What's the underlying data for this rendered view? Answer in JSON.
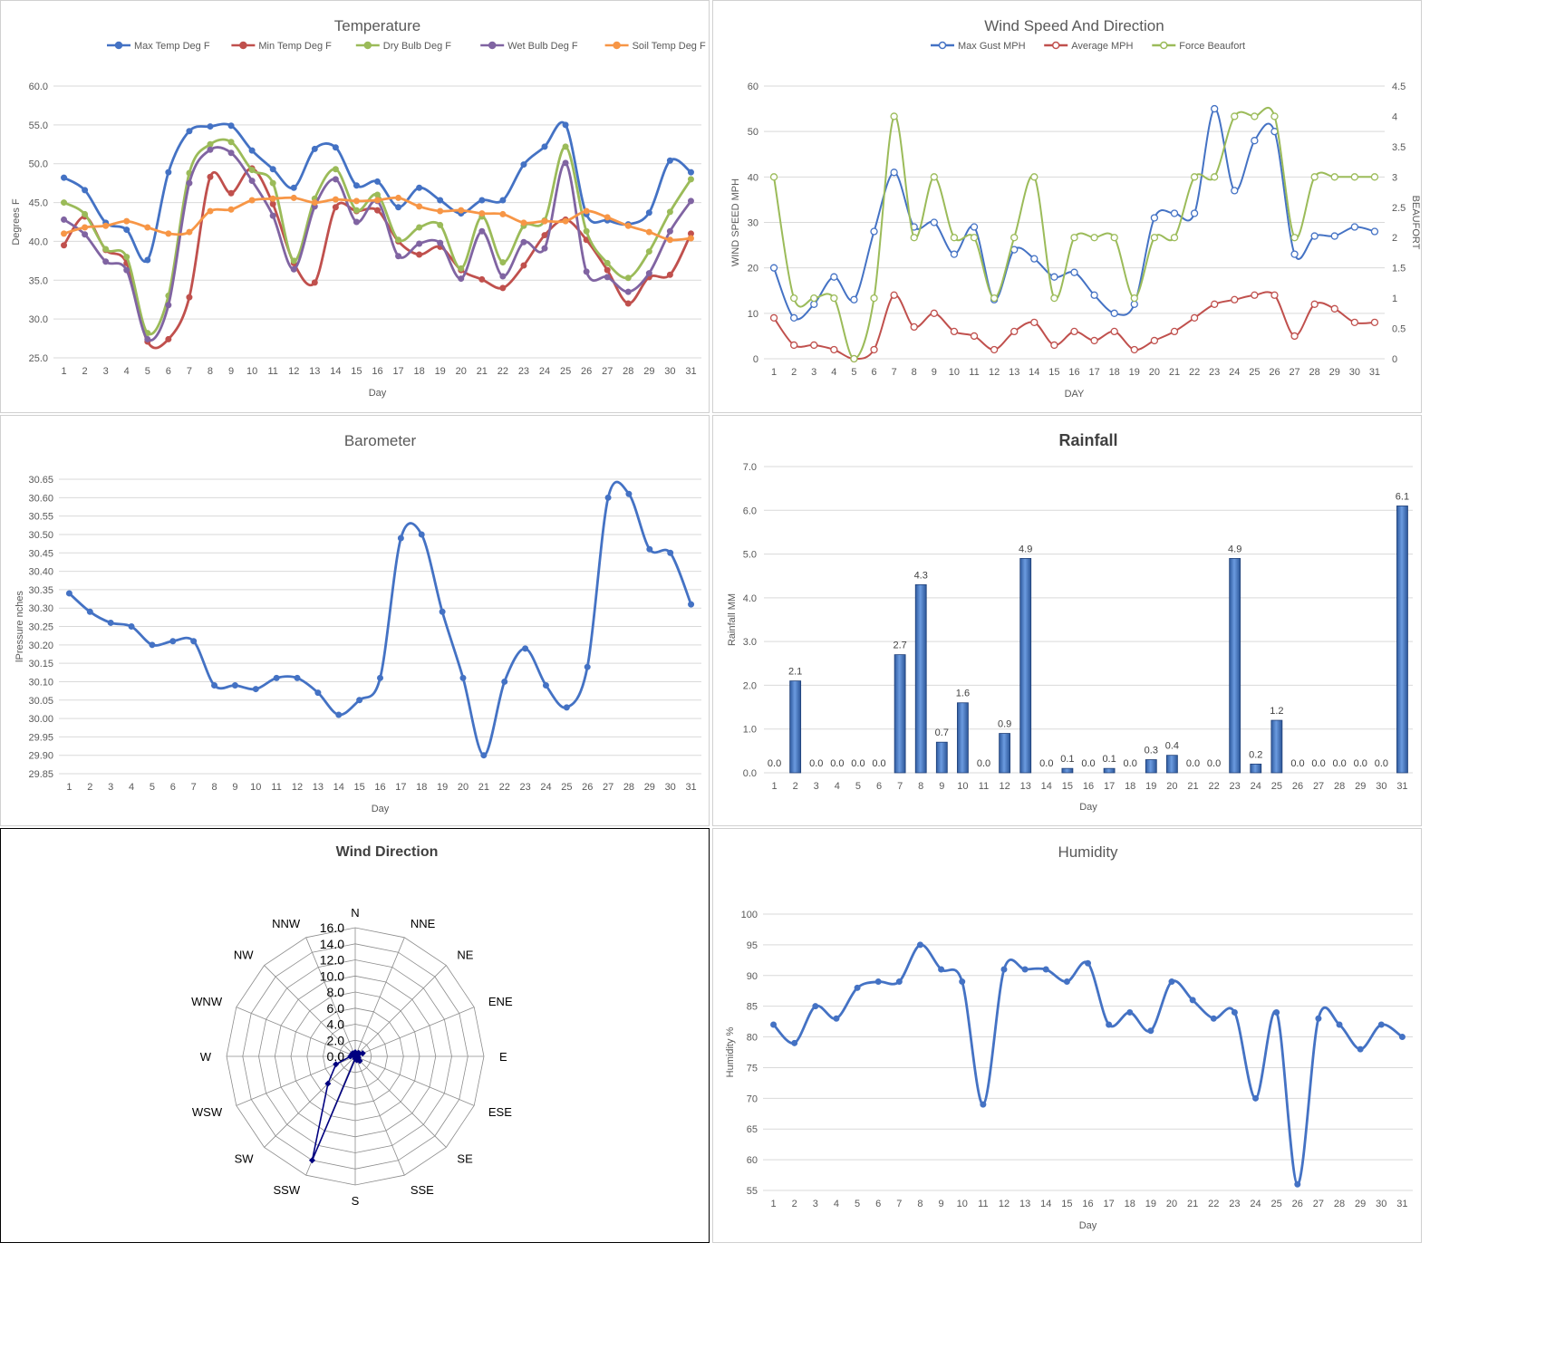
{
  "chart_data": [
    {
      "id": "temperature",
      "type": "line",
      "title": "Temperature",
      "xlabel": "Day",
      "ylabel": "Degrees F",
      "ylim": [
        25,
        60
      ],
      "yticks": [
        "60.0",
        "55.0",
        "50.0",
        "45.0",
        "40.0",
        "35.0",
        "30.0",
        "25.0"
      ],
      "categories": [
        "1",
        "2",
        "3",
        "4",
        "5",
        "6",
        "7",
        "8",
        "9",
        "10",
        "11",
        "12",
        "13",
        "14",
        "15",
        "16",
        "17",
        "18",
        "19",
        "20",
        "21",
        "22",
        "23",
        "24",
        "25",
        "26",
        "27",
        "28",
        "29",
        "30",
        "31"
      ],
      "grid": true,
      "legend": "top",
      "series": [
        {
          "name": "Max Temp Deg F",
          "color": "#4472c4",
          "values": [
            48.2,
            46.6,
            42.4,
            41.5,
            37.6,
            48.9,
            54.2,
            54.8,
            54.9,
            51.7,
            49.3,
            46.9,
            51.9,
            52.1,
            47.2,
            47.7,
            44.4,
            46.9,
            45.3,
            43.6,
            45.3,
            45.3,
            49.9,
            52.2,
            55.0,
            43.5,
            42.7,
            42.2,
            43.7,
            50.4,
            48.9
          ]
        },
        {
          "name": "Min Temp Deg F",
          "color": "#c0504d",
          "values": [
            39.5,
            43.2,
            38.9,
            37.2,
            27.1,
            27.4,
            32.8,
            48.3,
            46.2,
            49.4,
            44.8,
            37.2,
            34.7,
            44.4,
            43.9,
            44.0,
            40.0,
            38.3,
            39.3,
            36.3,
            35.1,
            34.0,
            36.9,
            40.8,
            42.8,
            40.2,
            36.3,
            32.0,
            35.4,
            35.7,
            41.0
          ]
        },
        {
          "name": "Dry Bulb Deg F",
          "color": "#9bbb59",
          "values": [
            45.0,
            43.5,
            39.0,
            38.0,
            28.2,
            33.0,
            48.8,
            52.5,
            52.8,
            49.2,
            47.5,
            37.5,
            45.5,
            49.3,
            44.0,
            46.0,
            40.2,
            41.8,
            42.1,
            36.5,
            43.2,
            37.3,
            42.0,
            42.7,
            52.2,
            41.3,
            37.2,
            35.3,
            38.7,
            43.8,
            48.0
          ]
        },
        {
          "name": "Wet Bulb Deg F",
          "color": "#8064a2",
          "values": [
            42.8,
            40.9,
            37.4,
            36.3,
            27.4,
            31.8,
            47.5,
            51.8,
            51.4,
            47.8,
            43.3,
            36.4,
            44.5,
            48.0,
            42.5,
            45.2,
            38.1,
            39.7,
            39.8,
            35.2,
            41.3,
            35.5,
            39.9,
            39.1,
            50.1,
            36.1,
            35.4,
            33.5,
            35.9,
            41.3,
            45.2
          ]
        },
        {
          "name": "Soil Temp Deg F",
          "color": "#f79646",
          "values": [
            41.0,
            41.8,
            42.0,
            42.6,
            41.8,
            41.0,
            41.2,
            43.9,
            44.1,
            45.3,
            45.5,
            45.6,
            45.0,
            45.4,
            45.2,
            45.3,
            45.6,
            44.5,
            43.9,
            44.0,
            43.6,
            43.5,
            42.4,
            42.6,
            42.6,
            43.9,
            43.1,
            42.0,
            41.2,
            40.2,
            40.4
          ]
        }
      ]
    },
    {
      "id": "wind",
      "type": "line",
      "title": "Wind Speed And Direction",
      "xlabel": "DAY",
      "ylabel": "WIND SPEED MPH",
      "y2label": "BEAUFORT",
      "ylim": [
        0,
        60
      ],
      "y2lim": [
        0,
        4.5
      ],
      "yticks": [
        "60",
        "50",
        "40",
        "30",
        "20",
        "10",
        "0"
      ],
      "y2ticks": [
        "4.5",
        "4",
        "3.5",
        "3",
        "2.5",
        "2",
        "1.5",
        "1",
        "0.5",
        "0"
      ],
      "categories": [
        "1",
        "2",
        "3",
        "4",
        "5",
        "6",
        "7",
        "8",
        "9",
        "10",
        "11",
        "12",
        "13",
        "14",
        "15",
        "16",
        "17",
        "18",
        "19",
        "20",
        "21",
        "22",
        "23",
        "24",
        "25",
        "26",
        "27",
        "28",
        "29",
        "30",
        "31"
      ],
      "grid": true,
      "legend": "top",
      "series": [
        {
          "name": "Max Gust MPH",
          "color": "#4472c4",
          "axis": "left",
          "values": [
            20,
            9,
            12,
            18,
            13,
            28,
            41,
            29,
            30,
            23,
            29,
            13,
            24,
            22,
            18,
            19,
            14,
            10,
            12,
            31,
            32,
            32,
            55,
            37,
            48,
            50,
            23,
            27,
            27,
            29,
            28
          ]
        },
        {
          "name": "Average MPH",
          "color": "#c0504d",
          "axis": "left",
          "values": [
            9,
            3,
            3,
            2,
            0,
            2,
            14,
            7,
            10,
            6,
            5,
            2,
            6,
            8,
            3,
            6,
            4,
            6,
            2,
            4,
            6,
            9,
            12,
            13,
            14,
            14,
            5,
            12,
            11,
            8,
            8
          ]
        },
        {
          "name": "Force Beaufort",
          "color": "#9bbb59",
          "axis": "right",
          "values": [
            3,
            1,
            1,
            1,
            0,
            1,
            4,
            2,
            3,
            2,
            2,
            1,
            2,
            3,
            1,
            2,
            2,
            2,
            1,
            2,
            2,
            3,
            3,
            4,
            4,
            4,
            2,
            3,
            3,
            3,
            3
          ]
        }
      ]
    },
    {
      "id": "barometer",
      "type": "line",
      "title": "Barometer",
      "xlabel": "Day",
      "ylabel": "lPressure nches",
      "ylim": [
        29.85,
        30.65
      ],
      "yticks": [
        "30.65",
        "30.60",
        "30.55",
        "30.50",
        "30.45",
        "30.40",
        "30.35",
        "30.30",
        "30.25",
        "30.20",
        "30.15",
        "30.10",
        "30.05",
        "30.00",
        "29.95",
        "29.90",
        "29.85"
      ],
      "categories": [
        "1",
        "2",
        "3",
        "4",
        "5",
        "6",
        "7",
        "8",
        "9",
        "10",
        "11",
        "12",
        "13",
        "14",
        "15",
        "16",
        "17",
        "18",
        "19",
        "20",
        "21",
        "22",
        "23",
        "24",
        "25",
        "26",
        "27",
        "28",
        "29",
        "30",
        "31"
      ],
      "grid": true,
      "series": [
        {
          "name": "",
          "color": "#4472c4",
          "values": [
            30.34,
            30.29,
            30.26,
            30.25,
            30.2,
            30.21,
            30.21,
            30.09,
            30.09,
            30.08,
            30.11,
            30.11,
            30.07,
            30.01,
            30.05,
            30.11,
            30.49,
            30.5,
            30.29,
            30.11,
            29.9,
            30.1,
            30.19,
            30.09,
            30.03,
            30.14,
            30.6,
            30.61,
            30.46,
            30.45,
            30.31
          ]
        }
      ]
    },
    {
      "id": "rainfall",
      "type": "bar",
      "title": "Rainfall",
      "xlabel": "Day",
      "ylabel": "Rainfall MM",
      "ylim": [
        0,
        7
      ],
      "yticks": [
        "7.0",
        "6.0",
        "5.0",
        "4.0",
        "3.0",
        "2.0",
        "1.0",
        "0.0"
      ],
      "categories": [
        "1",
        "2",
        "3",
        "4",
        "5",
        "6",
        "7",
        "8",
        "9",
        "10",
        "11",
        "12",
        "13",
        "14",
        "15",
        "16",
        "17",
        "18",
        "19",
        "20",
        "21",
        "22",
        "23",
        "24",
        "25",
        "26",
        "27",
        "28",
        "29",
        "30",
        "31"
      ],
      "grid": true,
      "series": [
        {
          "name": "",
          "color": "#4472c4",
          "values": [
            0.0,
            2.1,
            0.0,
            0.0,
            0.0,
            0.0,
            2.7,
            4.3,
            0.7,
            1.6,
            0.0,
            0.9,
            4.9,
            0.0,
            0.1,
            0.0,
            0.1,
            0.0,
            0.3,
            0.4,
            0.0,
            0.0,
            4.9,
            0.2,
            1.2,
            0.0,
            0.0,
            0.0,
            0.0,
            0.0,
            6.1
          ]
        }
      ],
      "data_labels": [
        "0.0",
        "2.1",
        "0.0",
        "0.0",
        "0.0",
        "0.0",
        "2.7",
        "4.3",
        "0.7",
        "1.6",
        "0.0",
        "0.9",
        "4.9",
        "0.0",
        "0.1",
        "0.0",
        "0.1",
        "0.0",
        "0.3",
        "0.4",
        "0.0",
        "0.0",
        "4.9",
        "0.2",
        "1.2",
        "0.0",
        "0.0",
        "0.0",
        "0.0",
        "0.0",
        "6.1"
      ]
    },
    {
      "id": "winddir",
      "type": "radar",
      "title": "Wind Direction",
      "rlim": [
        0,
        16
      ],
      "rticks": [
        "0.0",
        "2.0",
        "4.0",
        "6.0",
        "8.0",
        "10.0",
        "12.0",
        "14.0",
        "16.0"
      ],
      "directions": [
        "N",
        "NNE",
        "NE",
        "ENE",
        "E",
        "ESE",
        "SE",
        "SSE",
        "S",
        "SSW",
        "SW",
        "WSW",
        "W",
        "WNW",
        "NW",
        "NNW"
      ],
      "series": [
        {
          "name": "",
          "color": "#000080",
          "values": [
            0.5,
            0.3,
            0.6,
            1.0,
            0.3,
            0.4,
            0.8,
            0.5,
            0.3,
            14.0,
            4.8,
            2.6,
            0.6,
            0.2,
            0.5,
            0.4
          ]
        }
      ]
    },
    {
      "id": "humidity",
      "type": "line",
      "title": "Humidity",
      "xlabel": "Day",
      "ylabel": "Humidity %",
      "ylim": [
        55,
        100
      ],
      "yticks": [
        "100",
        "95",
        "90",
        "85",
        "80",
        "75",
        "70",
        "65",
        "60",
        "55"
      ],
      "categories": [
        "1",
        "2",
        "3",
        "4",
        "5",
        "6",
        "7",
        "8",
        "9",
        "10",
        "11",
        "12",
        "13",
        "14",
        "15",
        "16",
        "17",
        "18",
        "19",
        "20",
        "21",
        "22",
        "23",
        "24",
        "25",
        "26",
        "27",
        "28",
        "29",
        "30",
        "31"
      ],
      "grid": true,
      "series": [
        {
          "name": "",
          "color": "#4472c4",
          "values": [
            82,
            79,
            85,
            83,
            88,
            89,
            89,
            95,
            91,
            89,
            69,
            91,
            91,
            91,
            89,
            92,
            82,
            84,
            81,
            89,
            86,
            83,
            84,
            70,
            84,
            56,
            83,
            82,
            78,
            82,
            80
          ]
        }
      ]
    }
  ]
}
